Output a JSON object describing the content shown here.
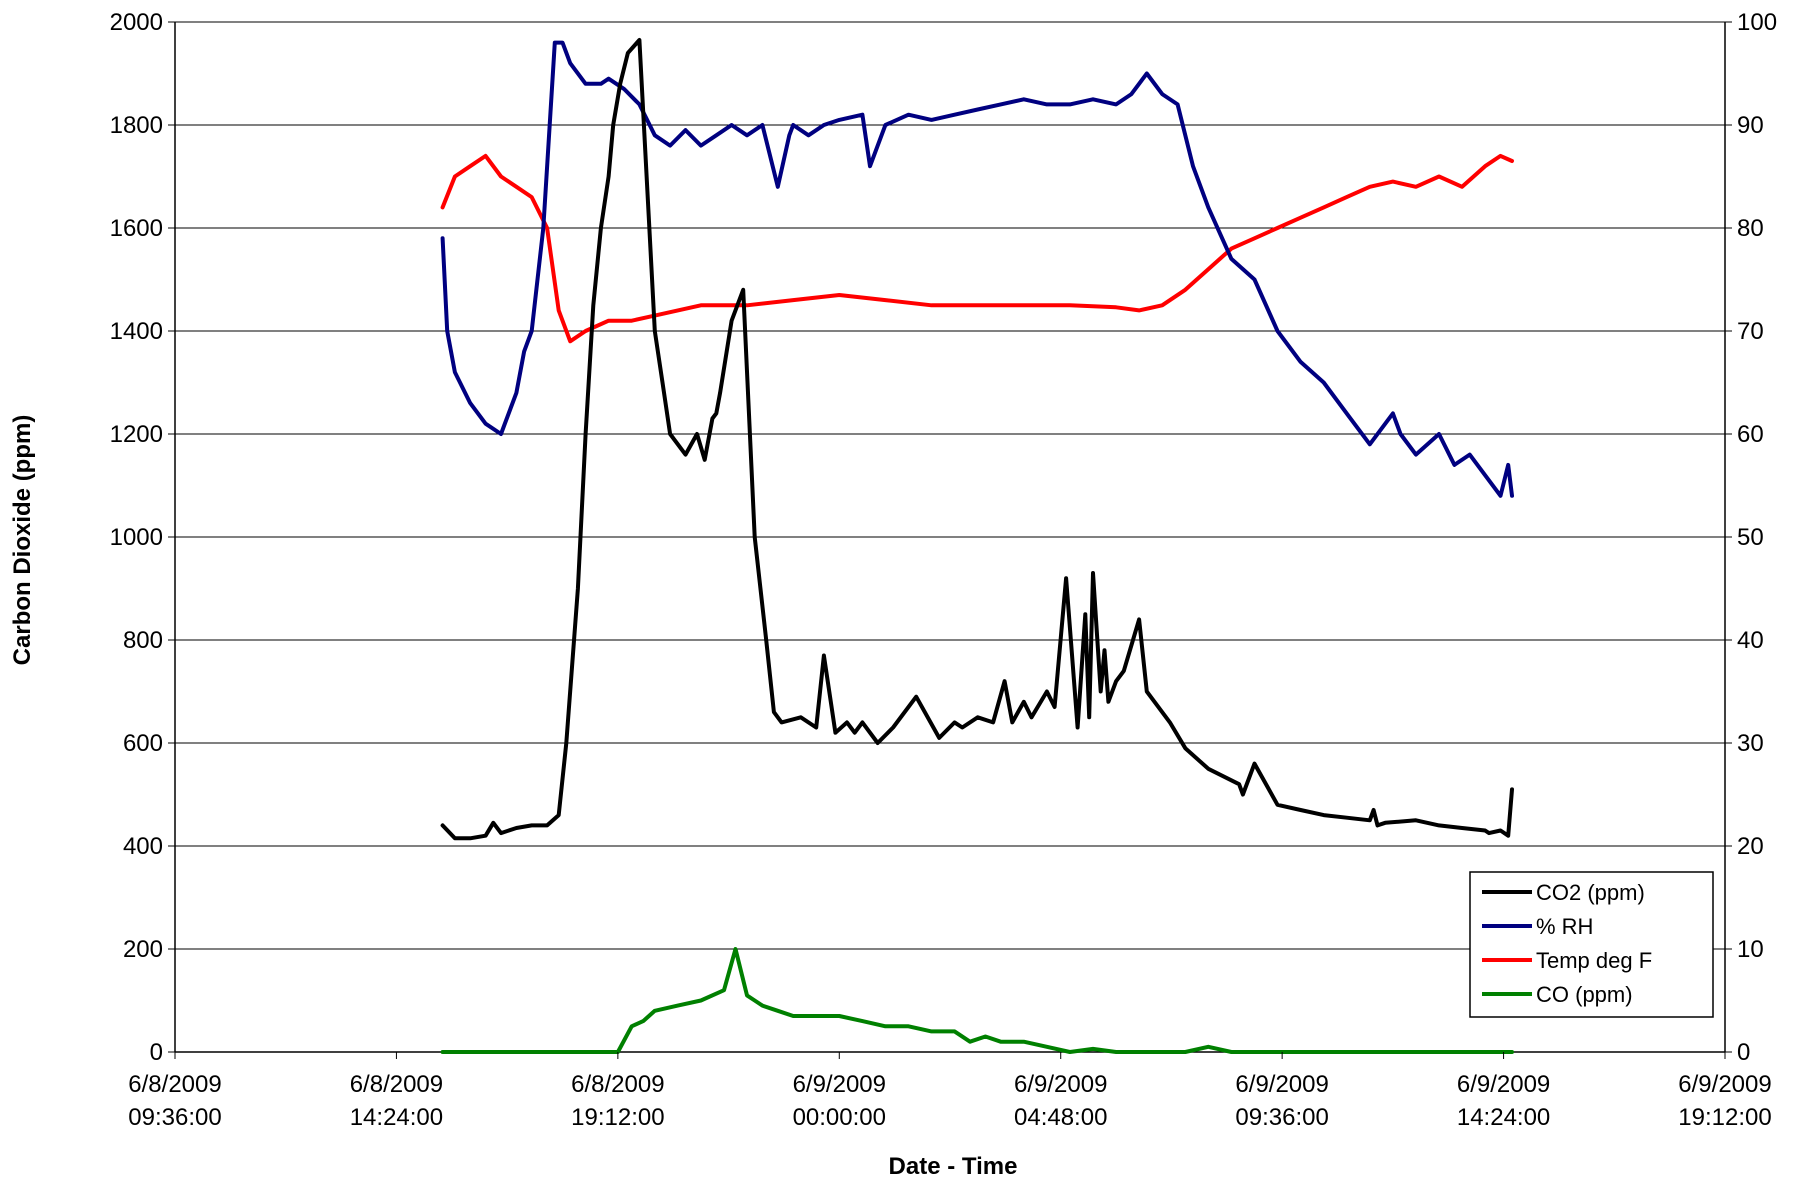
{
  "chart_data": {
    "type": "line",
    "title": "",
    "xlabel": "Date - Time",
    "ylabel": "Carbon Dioxide (ppm)",
    "y2label": "",
    "ylim": [
      0,
      2000
    ],
    "y2lim": [
      0,
      100
    ],
    "xlim": [
      "2009-06-08 09:36:00",
      "2009-06-09 19:12:00"
    ],
    "yticks": [
      "0",
      "200",
      "400",
      "600",
      "800",
      "1000",
      "1200",
      "1400",
      "1600",
      "1800",
      "2000"
    ],
    "y2ticks": [
      "0",
      "10",
      "20",
      "30",
      "40",
      "50",
      "60",
      "70",
      "80",
      "90",
      "100"
    ],
    "xticks": [
      {
        "date": "6/8/2009",
        "time": "09:36:00"
      },
      {
        "date": "6/8/2009",
        "time": "14:24:00"
      },
      {
        "date": "6/8/2009",
        "time": "19:12:00"
      },
      {
        "date": "6/9/2009",
        "time": "00:00:00"
      },
      {
        "date": "6/9/2009",
        "time": "04:48:00"
      },
      {
        "date": "6/9/2009",
        "time": "09:36:00"
      },
      {
        "date": "6/9/2009",
        "time": "14:24:00"
      },
      {
        "date": "6/9/2009",
        "time": "19:12:00"
      }
    ],
    "grid": "horizontal",
    "legend_position": "bottom-right",
    "series": [
      {
        "name": "CO2 (ppm)",
        "axis": "left",
        "color": "#000000",
        "x": [
          "2009-06-08 15:24",
          "2009-06-08 15:40",
          "2009-06-08 16:00",
          "2009-06-08 16:20",
          "2009-06-08 16:30",
          "2009-06-08 16:40",
          "2009-06-08 17:00",
          "2009-06-08 17:20",
          "2009-06-08 17:40",
          "2009-06-08 17:55",
          "2009-06-08 18:05",
          "2009-06-08 18:20",
          "2009-06-08 18:30",
          "2009-06-08 18:40",
          "2009-06-08 18:50",
          "2009-06-08 19:00",
          "2009-06-08 19:06",
          "2009-06-08 19:15",
          "2009-06-08 19:25",
          "2009-06-08 19:40",
          "2009-06-08 20:00",
          "2009-06-08 20:10",
          "2009-06-08 20:20",
          "2009-06-08 20:40",
          "2009-06-08 20:55",
          "2009-06-08 21:05",
          "2009-06-08 21:15",
          "2009-06-08 21:20",
          "2009-06-08 21:25",
          "2009-06-08 21:40",
          "2009-06-08 21:55",
          "2009-06-08 22:10",
          "2009-06-08 22:25",
          "2009-06-08 22:35",
          "2009-06-08 22:45",
          "2009-06-08 23:10",
          "2009-06-08 23:30",
          "2009-06-08 23:40",
          "2009-06-08 23:55",
          "2009-06-09 00:10",
          "2009-06-09 00:20",
          "2009-06-09 00:30",
          "2009-06-09 00:50",
          "2009-06-09 01:10",
          "2009-06-09 01:40",
          "2009-06-09 02:10",
          "2009-06-09 02:30",
          "2009-06-09 02:40",
          "2009-06-09 03:00",
          "2009-06-09 03:20",
          "2009-06-09 03:35",
          "2009-06-09 03:45",
          "2009-06-09 04:00",
          "2009-06-09 04:10",
          "2009-06-09 04:30",
          "2009-06-09 04:40",
          "2009-06-09 04:55",
          "2009-06-09 05:10",
          "2009-06-09 05:20",
          "2009-06-09 05:25",
          "2009-06-09 05:30",
          "2009-06-09 05:40",
          "2009-06-09 05:45",
          "2009-06-09 05:50",
          "2009-06-09 06:00",
          "2009-06-09 06:10",
          "2009-06-09 06:30",
          "2009-06-09 06:40",
          "2009-06-09 06:50",
          "2009-06-09 07:10",
          "2009-06-09 07:30",
          "2009-06-09 08:00",
          "2009-06-09 08:40",
          "2009-06-09 08:45",
          "2009-06-09 09:00",
          "2009-06-09 09:30",
          "2009-06-09 10:00",
          "2009-06-09 10:30",
          "2009-06-09 11:00",
          "2009-06-09 11:30",
          "2009-06-09 11:35",
          "2009-06-09 11:40",
          "2009-06-09 11:50",
          "2009-06-09 12:30",
          "2009-06-09 13:00",
          "2009-06-09 13:30",
          "2009-06-09 14:00",
          "2009-06-09 14:05",
          "2009-06-09 14:20",
          "2009-06-09 14:30",
          "2009-06-09 14:35"
        ],
        "y": [
          440,
          415,
          415,
          420,
          445,
          425,
          435,
          440,
          440,
          460,
          600,
          900,
          1200,
          1450,
          1600,
          1700,
          1800,
          1880,
          1940,
          1965,
          1400,
          1300,
          1200,
          1160,
          1200,
          1150,
          1230,
          1240,
          1280,
          1420,
          1480,
          1000,
          800,
          660,
          640,
          650,
          630,
          770,
          620,
          640,
          620,
          640,
          600,
          630,
          690,
          610,
          640,
          630,
          650,
          640,
          720,
          640,
          680,
          650,
          700,
          670,
          920,
          630,
          850,
          650,
          930,
          700,
          780,
          680,
          720,
          740,
          840,
          700,
          680,
          640,
          590,
          550,
          520,
          500,
          560,
          480,
          470,
          460,
          455,
          450,
          470,
          440,
          445,
          450,
          440,
          435,
          430,
          425,
          430,
          420,
          510
        ]
      },
      {
        "name": "% RH",
        "axis": "right",
        "color": "#000080",
        "x": [
          "2009-06-08 15:24",
          "2009-06-08 15:30",
          "2009-06-08 15:40",
          "2009-06-08 16:00",
          "2009-06-08 16:20",
          "2009-06-08 16:40",
          "2009-06-08 17:00",
          "2009-06-08 17:10",
          "2009-06-08 17:20",
          "2009-06-08 17:35",
          "2009-06-08 17:50",
          "2009-06-08 18:00",
          "2009-06-08 18:10",
          "2009-06-08 18:30",
          "2009-06-08 18:50",
          "2009-06-08 19:00",
          "2009-06-08 19:20",
          "2009-06-08 19:40",
          "2009-06-08 20:00",
          "2009-06-08 20:20",
          "2009-06-08 20:40",
          "2009-06-08 21:00",
          "2009-06-08 21:20",
          "2009-06-08 21:40",
          "2009-06-08 22:00",
          "2009-06-08 22:20",
          "2009-06-08 22:40",
          "2009-06-08 22:55",
          "2009-06-08 23:00",
          "2009-06-08 23:20",
          "2009-06-08 23:40",
          "2009-06-09 00:00",
          "2009-06-09 00:30",
          "2009-06-09 00:40",
          "2009-06-09 01:00",
          "2009-06-09 01:30",
          "2009-06-09 02:00",
          "2009-06-09 02:30",
          "2009-06-09 03:00",
          "2009-06-09 03:30",
          "2009-06-09 04:00",
          "2009-06-09 04:30",
          "2009-06-09 05:00",
          "2009-06-09 05:30",
          "2009-06-09 06:00",
          "2009-06-09 06:20",
          "2009-06-09 06:40",
          "2009-06-09 07:00",
          "2009-06-09 07:20",
          "2009-06-09 07:40",
          "2009-06-09 08:00",
          "2009-06-09 08:30",
          "2009-06-09 09:00",
          "2009-06-09 09:30",
          "2009-06-09 10:00",
          "2009-06-09 10:30",
          "2009-06-09 11:00",
          "2009-06-09 11:30",
          "2009-06-09 12:00",
          "2009-06-09 12:10",
          "2009-06-09 12:30",
          "2009-06-09 13:00",
          "2009-06-09 13:20",
          "2009-06-09 13:40",
          "2009-06-09 14:00",
          "2009-06-09 14:20",
          "2009-06-09 14:30",
          "2009-06-09 14:35"
        ],
        "y": [
          79,
          70,
          66,
          63,
          61,
          60,
          64,
          68,
          70,
          80,
          98,
          98,
          96,
          94,
          94,
          94.5,
          93.5,
          92,
          89,
          88,
          89.5,
          88,
          89,
          90,
          89,
          90,
          84,
          89,
          90,
          89,
          90,
          90.5,
          91,
          86,
          90,
          91,
          90.5,
          91,
          91.5,
          92,
          92.5,
          92,
          92,
          92.5,
          92,
          93,
          95,
          93,
          92,
          86,
          82,
          77,
          75,
          70,
          67,
          65,
          62,
          59,
          62,
          60,
          58,
          60,
          57,
          58,
          56,
          54,
          57,
          54
        ]
      },
      {
        "name": "Temp deg F",
        "axis": "right",
        "color": "#ff0000",
        "x": [
          "2009-06-08 15:24",
          "2009-06-08 15:40",
          "2009-06-08 16:00",
          "2009-06-08 16:20",
          "2009-06-08 16:40",
          "2009-06-08 17:00",
          "2009-06-08 17:20",
          "2009-06-08 17:40",
          "2009-06-08 17:55",
          "2009-06-08 18:10",
          "2009-06-08 18:30",
          "2009-06-08 19:00",
          "2009-06-08 19:30",
          "2009-06-08 20:00",
          "2009-06-08 21:00",
          "2009-06-08 22:00",
          "2009-06-08 23:00",
          "2009-06-09 00:00",
          "2009-06-09 01:00",
          "2009-06-09 02:00",
          "2009-06-09 03:00",
          "2009-06-09 04:00",
          "2009-06-09 05:00",
          "2009-06-09 06:00",
          "2009-06-09 06:30",
          "2009-06-09 07:00",
          "2009-06-09 07:30",
          "2009-06-09 08:00",
          "2009-06-09 08:30",
          "2009-06-09 09:00",
          "2009-06-09 09:30",
          "2009-06-09 10:00",
          "2009-06-09 10:30",
          "2009-06-09 11:00",
          "2009-06-09 11:30",
          "2009-06-09 12:00",
          "2009-06-09 12:30",
          "2009-06-09 13:00",
          "2009-06-09 13:30",
          "2009-06-09 14:00",
          "2009-06-09 14:20",
          "2009-06-09 14:35"
        ],
        "y": [
          82,
          85,
          86,
          87,
          85,
          84,
          83,
          80,
          72,
          69,
          70,
          71,
          71,
          71.5,
          72.5,
          72.5,
          73,
          73.5,
          73,
          72.5,
          72.5,
          72.5,
          72.5,
          72.3,
          72,
          72.5,
          74,
          76,
          78,
          79,
          80,
          81,
          82,
          83,
          84,
          84.5,
          84,
          85,
          84,
          86,
          87,
          86.5
        ]
      },
      {
        "name": "CO (ppm)",
        "axis": "right",
        "color": "#008000",
        "x": [
          "2009-06-08 15:24",
          "2009-06-08 17:00",
          "2009-06-08 19:12",
          "2009-06-08 19:30",
          "2009-06-08 19:45",
          "2009-06-08 20:00",
          "2009-06-08 20:30",
          "2009-06-08 21:00",
          "2009-06-08 21:30",
          "2009-06-08 21:45",
          "2009-06-08 22:00",
          "2009-06-08 22:10",
          "2009-06-08 22:20",
          "2009-06-08 22:40",
          "2009-06-08 23:00",
          "2009-06-08 23:30",
          "2009-06-09 00:00",
          "2009-06-09 00:30",
          "2009-06-09 01:00",
          "2009-06-09 01:30",
          "2009-06-09 02:00",
          "2009-06-09 02:30",
          "2009-06-09 02:50",
          "2009-06-09 03:10",
          "2009-06-09 03:30",
          "2009-06-09 04:00",
          "2009-06-09 04:30",
          "2009-06-09 05:00",
          "2009-06-09 05:30",
          "2009-06-09 06:00",
          "2009-06-09 06:30",
          "2009-06-09 07:00",
          "2009-06-09 07:30",
          "2009-06-09 08:00",
          "2009-06-09 08:30",
          "2009-06-09 09:00",
          "2009-06-09 10:00",
          "2009-06-09 12:00",
          "2009-06-09 14:35"
        ],
        "y": [
          0,
          0,
          0,
          2.5,
          3,
          4,
          4.5,
          5,
          6,
          10,
          5.5,
          5,
          4.5,
          4,
          3.5,
          3.5,
          3.5,
          3,
          2.5,
          2.5,
          2,
          2,
          1,
          1.5,
          1,
          1,
          0.5,
          0,
          0.3,
          0,
          0,
          0,
          0,
          0.5,
          0,
          0,
          0,
          0,
          0
        ]
      }
    ]
  }
}
